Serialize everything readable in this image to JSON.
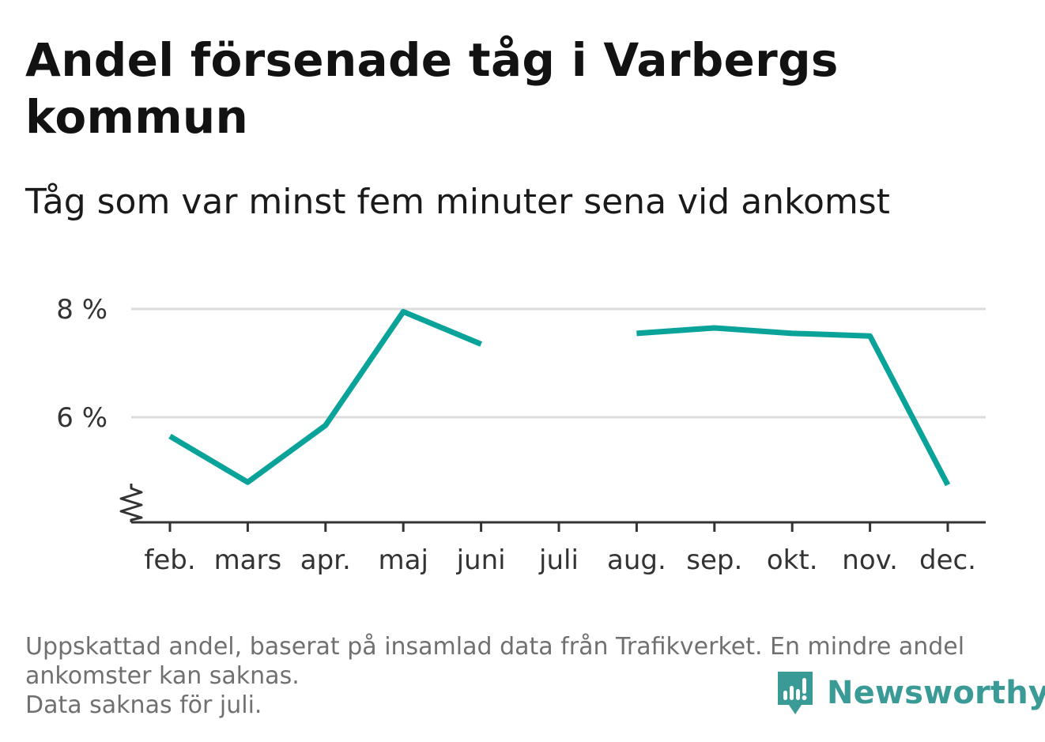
{
  "title": "Andel försenade tåg i Varbergs kommun",
  "subtitle": "Tåg som var minst fem minuter sena vid ankomst",
  "footnote_lines": [
    "Uppskattad andel, baserat på insamlad data från Trafikverket. En mindre andel ankomster kan saknas.",
    "Data saknas för juli."
  ],
  "brand": {
    "name": "Newsworthy",
    "icon": "newsworthy-logo-icon",
    "color": "#3a9a96"
  },
  "chart_data": {
    "type": "line",
    "categories": [
      "feb.",
      "mars",
      "apr.",
      "maj",
      "juni",
      "juli",
      "aug.",
      "sep.",
      "okt.",
      "nov.",
      "dec."
    ],
    "series": [
      {
        "values": [
          5.65,
          4.8,
          5.85,
          7.95,
          7.35,
          null,
          7.55,
          7.65,
          7.55,
          7.5,
          4.75
        ],
        "color": "#0aa39a"
      }
    ],
    "ylim": [
      4.0,
      8.2
    ],
    "yticks": [
      6,
      8
    ],
    "ytick_labels": [
      "6 %",
      "8 %"
    ],
    "axis_break": true,
    "grid": true
  }
}
